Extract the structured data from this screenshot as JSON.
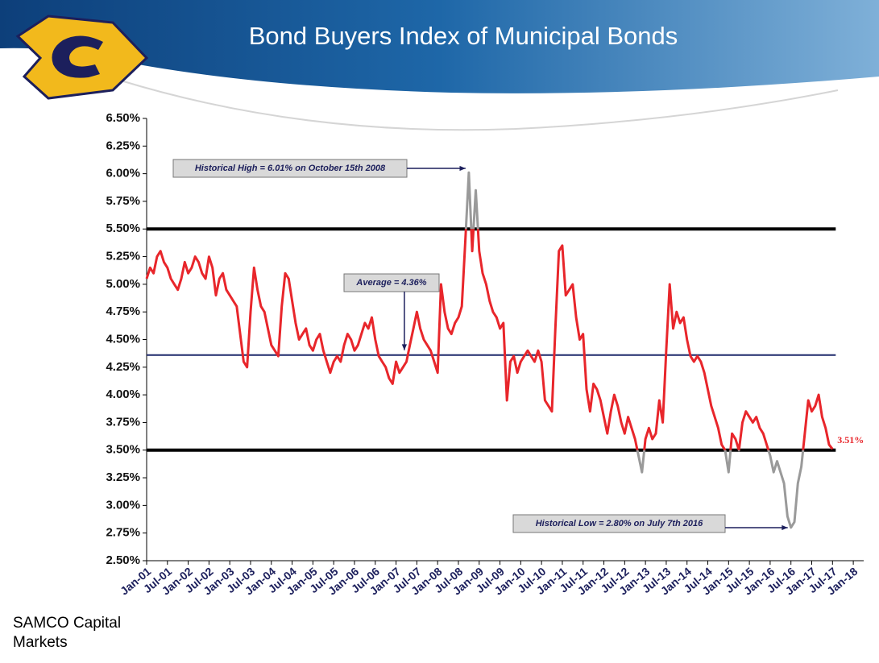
{
  "chart_data": {
    "type": "line",
    "title": "Bond Buyers Index of Municipal Bonds",
    "source": "SAMCO Capital Markets",
    "x": [
      2001,
      2001.083,
      2001.167,
      2001.25,
      2001.333,
      2001.417,
      2001.5,
      2001.583,
      2001.667,
      2001.75,
      2001.833,
      2001.917,
      2002,
      2002.083,
      2002.167,
      2002.25,
      2002.333,
      2002.417,
      2002.5,
      2002.583,
      2002.667,
      2002.75,
      2002.833,
      2002.917,
      2003,
      2003.083,
      2003.167,
      2003.25,
      2003.333,
      2003.417,
      2003.5,
      2003.583,
      2003.667,
      2003.75,
      2003.833,
      2003.917,
      2004,
      2004.083,
      2004.167,
      2004.25,
      2004.333,
      2004.417,
      2004.5,
      2004.583,
      2004.667,
      2004.75,
      2004.833,
      2004.917,
      2005,
      2005.083,
      2005.167,
      2005.25,
      2005.333,
      2005.417,
      2005.5,
      2005.583,
      2005.667,
      2005.75,
      2005.833,
      2005.917,
      2006,
      2006.083,
      2006.167,
      2006.25,
      2006.333,
      2006.417,
      2006.5,
      2006.583,
      2006.667,
      2006.75,
      2006.833,
      2006.917,
      2007,
      2007.083,
      2007.167,
      2007.25,
      2007.333,
      2007.417,
      2007.5,
      2007.583,
      2007.667,
      2007.75,
      2007.833,
      2007.917,
      2008,
      2008.083,
      2008.167,
      2008.25,
      2008.333,
      2008.417,
      2008.5,
      2008.583,
      2008.667,
      2008.75,
      2008.833,
      2008.917,
      2009,
      2009.083,
      2009.167,
      2009.25,
      2009.333,
      2009.417,
      2009.5,
      2009.583,
      2009.667,
      2009.75,
      2009.833,
      2009.917,
      2010,
      2010.083,
      2010.167,
      2010.25,
      2010.333,
      2010.417,
      2010.5,
      2010.583,
      2010.667,
      2010.75,
      2010.833,
      2010.917,
      2011,
      2011.083,
      2011.167,
      2011.25,
      2011.333,
      2011.417,
      2011.5,
      2011.583,
      2011.667,
      2011.75,
      2011.833,
      2011.917,
      2012,
      2012.083,
      2012.167,
      2012.25,
      2012.333,
      2012.417,
      2012.5,
      2012.583,
      2012.667,
      2012.75,
      2012.833,
      2012.917,
      2013,
      2013.083,
      2013.167,
      2013.25,
      2013.333,
      2013.417,
      2013.5,
      2013.583,
      2013.667,
      2013.75,
      2013.833,
      2013.917,
      2014,
      2014.083,
      2014.167,
      2014.25,
      2014.333,
      2014.417,
      2014.5,
      2014.583,
      2014.667,
      2014.75,
      2014.833,
      2014.917,
      2015,
      2015.083,
      2015.167,
      2015.25,
      2015.333,
      2015.417,
      2015.5,
      2015.583,
      2015.667,
      2015.75,
      2015.833,
      2015.917,
      2016,
      2016.083,
      2016.167,
      2016.25,
      2016.333,
      2016.417,
      2016.5,
      2016.583,
      2016.667,
      2016.75,
      2016.833,
      2016.917,
      2017,
      2017.083,
      2017.167,
      2017.25,
      2017.333,
      2017.417,
      2017.5
    ],
    "series": [
      {
        "color": "#e8262b",
        "outside_color": "#9a9a9a",
        "values": [
          5.05,
          5.15,
          5.1,
          5.25,
          5.3,
          5.2,
          5.15,
          5.05,
          5.0,
          4.95,
          5.05,
          5.2,
          5.1,
          5.15,
          5.25,
          5.2,
          5.1,
          5.05,
          5.25,
          5.15,
          4.9,
          5.05,
          5.1,
          4.95,
          4.9,
          4.85,
          4.8,
          4.55,
          4.3,
          4.25,
          4.75,
          5.15,
          4.95,
          4.8,
          4.75,
          4.6,
          4.45,
          4.4,
          4.35,
          4.8,
          5.1,
          5.05,
          4.85,
          4.65,
          4.5,
          4.55,
          4.6,
          4.45,
          4.4,
          4.5,
          4.55,
          4.4,
          4.3,
          4.2,
          4.3,
          4.35,
          4.3,
          4.45,
          4.55,
          4.5,
          4.4,
          4.45,
          4.55,
          4.65,
          4.6,
          4.7,
          4.5,
          4.35,
          4.3,
          4.25,
          4.15,
          4.1,
          4.3,
          4.2,
          4.25,
          4.3,
          4.45,
          4.6,
          4.75,
          4.6,
          4.5,
          4.45,
          4.4,
          4.3,
          4.2,
          5.0,
          4.75,
          4.6,
          4.55,
          4.65,
          4.7,
          4.8,
          5.4,
          6.01,
          5.3,
          5.85,
          5.3,
          5.1,
          5.0,
          4.85,
          4.75,
          4.7,
          4.6,
          4.65,
          3.95,
          4.3,
          4.35,
          4.2,
          4.3,
          4.35,
          4.4,
          4.35,
          4.3,
          4.4,
          4.3,
          3.95,
          3.9,
          3.85,
          4.6,
          5.3,
          5.35,
          4.9,
          4.95,
          5.0,
          4.7,
          4.5,
          4.55,
          4.05,
          3.85,
          4.1,
          4.05,
          3.95,
          3.8,
          3.65,
          3.85,
          4.0,
          3.9,
          3.75,
          3.65,
          3.8,
          3.7,
          3.6,
          3.45,
          3.3,
          3.6,
          3.7,
          3.6,
          3.65,
          3.95,
          3.75,
          4.4,
          5.0,
          4.6,
          4.75,
          4.65,
          4.7,
          4.5,
          4.35,
          4.3,
          4.35,
          4.3,
          4.2,
          4.05,
          3.9,
          3.8,
          3.7,
          3.55,
          3.5,
          3.3,
          3.65,
          3.6,
          3.5,
          3.75,
          3.85,
          3.8,
          3.75,
          3.8,
          3.7,
          3.65,
          3.55,
          3.45,
          3.3,
          3.4,
          3.3,
          3.2,
          2.9,
          2.8,
          2.85,
          3.2,
          3.35,
          3.65,
          3.95,
          3.85,
          3.9,
          4.0,
          3.8,
          3.7,
          3.55,
          3.51
        ]
      }
    ],
    "last_label": "3.51%",
    "xlim": [
      2001,
      2018.25
    ],
    "xticks": [
      {
        "value": 2001,
        "label": "Jan-01"
      },
      {
        "value": 2001.5,
        "label": "Jul-01"
      },
      {
        "value": 2002,
        "label": "Jan-02"
      },
      {
        "value": 2002.5,
        "label": "Jul-02"
      },
      {
        "value": 2003,
        "label": "Jan-03"
      },
      {
        "value": 2003.5,
        "label": "Jul-03"
      },
      {
        "value": 2004,
        "label": "Jan-04"
      },
      {
        "value": 2004.5,
        "label": "Jul-04"
      },
      {
        "value": 2005,
        "label": "Jan-05"
      },
      {
        "value": 2005.5,
        "label": "Jul-05"
      },
      {
        "value": 2006,
        "label": "Jan-06"
      },
      {
        "value": 2006.5,
        "label": "Jul-06"
      },
      {
        "value": 2007,
        "label": "Jan-07"
      },
      {
        "value": 2007.5,
        "label": "Jul-07"
      },
      {
        "value": 2008,
        "label": "Jan-08"
      },
      {
        "value": 2008.5,
        "label": "Jul-08"
      },
      {
        "value": 2009,
        "label": "Jan-09"
      },
      {
        "value": 2009.5,
        "label": "Jul-09"
      },
      {
        "value": 2010,
        "label": "Jan-10"
      },
      {
        "value": 2010.5,
        "label": "Jul-10"
      },
      {
        "value": 2011,
        "label": "Jan-11"
      },
      {
        "value": 2011.5,
        "label": "Jul-11"
      },
      {
        "value": 2012,
        "label": "Jan-12"
      },
      {
        "value": 2012.5,
        "label": "Jul-12"
      },
      {
        "value": 2013,
        "label": "Jan-13"
      },
      {
        "value": 2013.5,
        "label": "Jul-13"
      },
      {
        "value": 2014,
        "label": "Jan-14"
      },
      {
        "value": 2014.5,
        "label": "Jul-14"
      },
      {
        "value": 2015,
        "label": "Jan-15"
      },
      {
        "value": 2015.5,
        "label": "Jul-15"
      },
      {
        "value": 2016,
        "label": "Jan-16"
      },
      {
        "value": 2016.5,
        "label": "Jul-16"
      },
      {
        "value": 2017,
        "label": "Jan-17"
      },
      {
        "value": 2017.5,
        "label": "Jul-17"
      },
      {
        "value": 2018,
        "label": "Jan-18"
      }
    ],
    "ylim": [
      2.5,
      6.5
    ],
    "yticks": [
      {
        "value": 2.5,
        "label": "2.50%"
      },
      {
        "value": 2.75,
        "label": "2.75%"
      },
      {
        "value": 3,
        "label": "3.00%"
      },
      {
        "value": 3.25,
        "label": "3.25%"
      },
      {
        "value": 3.5,
        "label": "3.50%"
      },
      {
        "value": 3.75,
        "label": "3.75%"
      },
      {
        "value": 4,
        "label": "4.00%"
      },
      {
        "value": 4.25,
        "label": "4.25%"
      },
      {
        "value": 4.5,
        "label": "4.50%"
      },
      {
        "value": 4.75,
        "label": "4.75%"
      },
      {
        "value": 5,
        "label": "5.00%"
      },
      {
        "value": 5.25,
        "label": "5.25%"
      },
      {
        "value": 5.5,
        "label": "5.50%"
      },
      {
        "value": 5.75,
        "label": "5.75%"
      },
      {
        "value": 6,
        "label": "6.00%"
      },
      {
        "value": 6.25,
        "label": "6.25%"
      },
      {
        "value": 6.5,
        "label": "6.50%"
      }
    ],
    "reference_lines": [
      {
        "value": 5.5,
        "color": "#000000"
      },
      {
        "value": 4.36,
        "color": "#1f2a6b"
      },
      {
        "value": 3.5,
        "color": "#000000"
      }
    ],
    "annotations": [
      {
        "text": "Historical High = 6.01% on October 15th 2008",
        "x": 2008.75,
        "y": 6.01
      },
      {
        "text": "Average = 4.36%",
        "x": 2007.2,
        "y": 4.36
      },
      {
        "text": "Historical Low = 2.80% on July 7th 2016",
        "x": 2016.5,
        "y": 2.8
      }
    ]
  }
}
